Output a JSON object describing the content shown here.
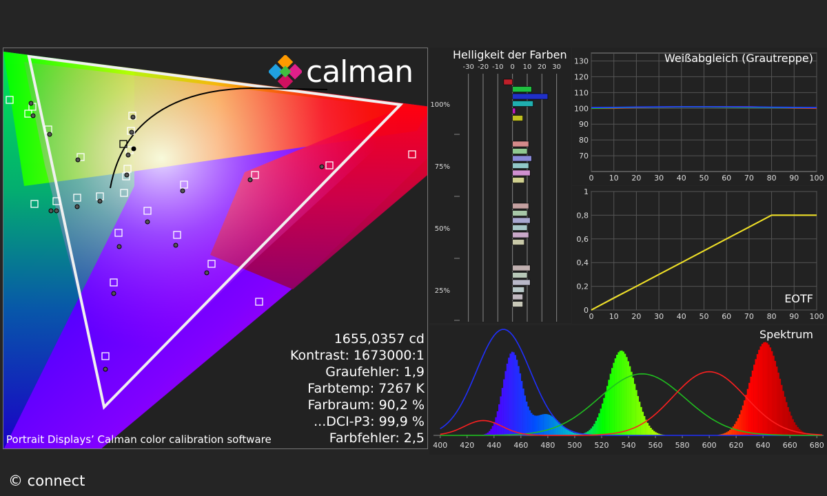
{
  "cie": {
    "credit": "Portrait Displays’ Calman color calibration software",
    "logo_text": "calman",
    "stats": [
      "1655,0357 cd",
      "Kontrast: 1673000:1",
      "Graufehler: 1,9",
      "Farbtemp: 7267 K",
      "Farbraum: 90,2 %",
      "...DCI-P3: 99,9 %",
      "Farbfehler: 2,5"
    ]
  },
  "copyright": "© connect",
  "chart_data": [
    {
      "type": "bar",
      "title": "Helligkeit der Farben",
      "xticks": [
        "-30",
        "-20",
        "-10",
        "0",
        "10",
        "20",
        "30"
      ],
      "xlim": [
        -35,
        40
      ],
      "yticks": [
        "100%",
        "75%",
        "50%",
        "25%"
      ],
      "groups": [
        {
          "label": "100%",
          "bars": [
            {
              "color": "#c0202a",
              "value": -6
            },
            {
              "color": "#20c040",
              "value": 13
            },
            {
              "color": "#2030c8",
              "value": 24
            },
            {
              "color": "#20b0b0",
              "value": 14
            },
            {
              "color": "#c020c0",
              "value": 2
            },
            {
              "color": "#c0c020",
              "value": 7
            }
          ]
        },
        {
          "label": "75%",
          "bars": [
            {
              "color": "#d48a8a",
              "value": 11
            },
            {
              "color": "#90c890",
              "value": 10
            },
            {
              "color": "#8a8ad8",
              "value": 13
            },
            {
              "color": "#90c8c8",
              "value": 11
            },
            {
              "color": "#d090d0",
              "value": 12
            },
            {
              "color": "#d0d090",
              "value": 8
            }
          ]
        },
        {
          "label": "50%",
          "bars": [
            {
              "color": "#c4a0a0",
              "value": 11
            },
            {
              "color": "#a8c8a8",
              "value": 10
            },
            {
              "color": "#a8a8d0",
              "value": 12
            },
            {
              "color": "#a8c8c8",
              "value": 10
            },
            {
              "color": "#c8a8c8",
              "value": 11
            },
            {
              "color": "#c8c8a8",
              "value": 8
            }
          ]
        },
        {
          "label": "25%",
          "bars": [
            {
              "color": "#c0b0b0",
              "value": 12
            },
            {
              "color": "#b8c8b8",
              "value": 10
            },
            {
              "color": "#b8b8c8",
              "value": 12
            },
            {
              "color": "#b8c8c8",
              "value": 8
            },
            {
              "color": "#c0b8c0",
              "value": 7
            },
            {
              "color": "#c8c8b8",
              "value": 7
            }
          ]
        }
      ]
    },
    {
      "type": "line",
      "title": "Weißabgleich (Grautreppe)",
      "x": [
        0,
        10,
        20,
        30,
        40,
        50,
        60,
        70,
        80,
        90,
        100
      ],
      "xlim": [
        0,
        100
      ],
      "ylim": [
        60,
        135
      ],
      "yticks": [
        70,
        80,
        90,
        100,
        110,
        120,
        130
      ],
      "series": [
        {
          "color": "#ff2020",
          "values": [
            100,
            100,
            100.5,
            100.8,
            101,
            101,
            101,
            101,
            100.6,
            100.2,
            100
          ]
        },
        {
          "color": "#20c020",
          "values": [
            100,
            100.3,
            100.6,
            100.8,
            100.9,
            100.9,
            100.8,
            100.6,
            100.5,
            100.4,
            100.4
          ]
        },
        {
          "color": "#2040ff",
          "values": [
            100.5,
            100.6,
            100.8,
            100.9,
            101,
            101,
            101,
            100.9,
            100.7,
            100.6,
            100.5
          ]
        }
      ]
    },
    {
      "type": "line",
      "title": "EOTF",
      "x": [
        0,
        10,
        20,
        30,
        40,
        50,
        60,
        70,
        80,
        81,
        90,
        100
      ],
      "xlim": [
        0,
        100
      ],
      "ylim": [
        0,
        1
      ],
      "yticks": [
        "0",
        "0,2",
        "0,4",
        "0,6",
        "0,8",
        "1"
      ],
      "xticks": [
        0,
        10,
        20,
        30,
        40,
        50,
        60,
        70,
        80,
        90,
        100
      ],
      "series": [
        {
          "color": "#999999",
          "values": [
            0,
            0.103,
            0.2,
            0.3,
            0.4,
            0.5,
            0.6,
            0.7,
            0.8,
            0.8,
            0.8,
            0.8
          ]
        },
        {
          "color": "#f0e020",
          "values": [
            0,
            0.1,
            0.2,
            0.3,
            0.4,
            0.5,
            0.6,
            0.7,
            0.8,
            0.8,
            0.8,
            0.8
          ]
        }
      ]
    },
    {
      "type": "area",
      "title": "Spektrum",
      "xlim": [
        395,
        685
      ],
      "xticks": [
        400,
        420,
        440,
        460,
        480,
        500,
        520,
        540,
        560,
        580,
        600,
        620,
        640,
        660,
        680
      ],
      "series": [
        {
          "name": "",
          "color": "spectrum",
          "peaks": [
            {
              "center": 453,
              "width": 7,
              "height": 0.78
            },
            {
              "center": 478,
              "width": 10,
              "height": 0.2
            },
            {
              "center": 534,
              "width": 10,
              "height": 0.8
            },
            {
              "center": 641,
              "width": 11,
              "height": 0.88
            }
          ]
        },
        {
          "name": "",
          "color": "#2030ff",
          "peaks": [
            {
              "center": 447,
              "width": 20,
              "height": 1.0
            }
          ]
        },
        {
          "name": "",
          "color": "#20c020",
          "peaks": [
            {
              "center": 550,
              "width": 32,
              "height": 0.58
            }
          ]
        },
        {
          "name": "",
          "color": "#ff2020",
          "peaks": [
            {
              "center": 600,
              "width": 27,
              "height": 0.6
            },
            {
              "center": 432,
              "width": 14,
              "height": 0.14
            }
          ]
        }
      ]
    },
    {
      "type": "scatter",
      "title": "",
      "targets_white": [
        [
          9,
          75
        ],
        [
          36,
          95
        ],
        [
          42,
          85
        ],
        [
          187,
          98
        ],
        [
          185,
          120
        ],
        [
          183,
          148
        ],
        [
          180,
          175
        ],
        [
          178,
          186
        ],
        [
          175,
          210
        ],
        [
          167,
          268
        ],
        [
          65,
          118
        ],
        [
          112,
          158
        ],
        [
          45,
          226
        ],
        [
          77,
          222
        ],
        [
          107,
          217
        ],
        [
          140,
          215
        ],
        [
          262,
          198
        ],
        [
          365,
          184
        ],
        [
          473,
          170
        ],
        [
          593,
          154
        ],
        [
          209,
          236
        ],
        [
          252,
          271
        ],
        [
          302,
          313
        ],
        [
          160,
          340
        ],
        [
          371,
          368
        ],
        [
          148,
          447
        ],
        [
          130,
          598
        ]
      ],
      "measured": [
        [
          40,
          80
        ],
        [
          43,
          98
        ],
        [
          67,
          125
        ],
        [
          188,
          100
        ],
        [
          186,
          122
        ],
        [
          181,
          155
        ],
        [
          179,
          184
        ],
        [
          108,
          162
        ],
        [
          69,
          236
        ],
        [
          77,
          236
        ],
        [
          107,
          230
        ],
        [
          140,
          222
        ],
        [
          260,
          207
        ],
        [
          358,
          191
        ],
        [
          462,
          172
        ],
        [
          209,
          252
        ],
        [
          250,
          286
        ],
        [
          295,
          326
        ],
        [
          160,
          356
        ],
        [
          168,
          288
        ],
        [
          148,
          466
        ]
      ]
    }
  ]
}
